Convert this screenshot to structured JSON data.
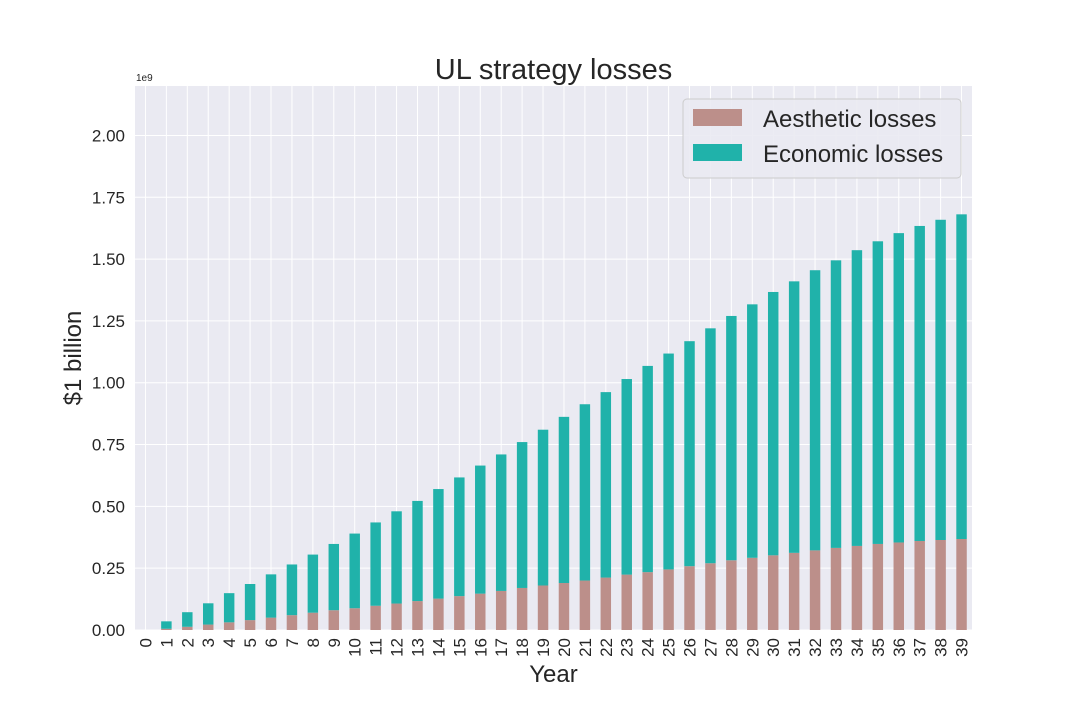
{
  "chart_data": {
    "type": "bar",
    "stacked": true,
    "title": "UL strategy losses",
    "xlabel": "Year",
    "ylabel": "$1 billion",
    "y_offset_label": "1e9",
    "ylim": [
      0,
      2.2
    ],
    "yticks": [
      0.0,
      0.25,
      0.5,
      0.75,
      1.0,
      1.25,
      1.5,
      1.75,
      2.0
    ],
    "ytick_labels": [
      "0.00",
      "0.25",
      "0.50",
      "0.75",
      "1.00",
      "1.25",
      "1.50",
      "1.75",
      "2.00"
    ],
    "grid": true,
    "legend_position": "top-right",
    "categories": [
      "0",
      "1",
      "2",
      "3",
      "4",
      "5",
      "6",
      "7",
      "8",
      "9",
      "10",
      "11",
      "12",
      "13",
      "14",
      "15",
      "16",
      "17",
      "18",
      "19",
      "20",
      "21",
      "22",
      "23",
      "24",
      "25",
      "26",
      "27",
      "28",
      "29",
      "30",
      "31",
      "32",
      "33",
      "34",
      "35",
      "36",
      "37",
      "38",
      "39"
    ],
    "series": [
      {
        "name": "Aesthetic losses",
        "color": "#bc8f8a",
        "values": [
          0.0,
          0.005,
          0.013,
          0.022,
          0.031,
          0.04,
          0.05,
          0.06,
          0.07,
          0.08,
          0.088,
          0.098,
          0.107,
          0.117,
          0.127,
          0.137,
          0.147,
          0.158,
          0.17,
          0.18,
          0.19,
          0.2,
          0.212,
          0.224,
          0.234,
          0.245,
          0.258,
          0.27,
          0.282,
          0.292,
          0.302,
          0.312,
          0.322,
          0.332,
          0.34,
          0.348,
          0.354,
          0.36,
          0.364,
          0.368
        ]
      },
      {
        "name": "Economic losses",
        "color": "#20b2aa",
        "values": [
          0.0,
          0.03,
          0.059,
          0.086,
          0.118,
          0.146,
          0.175,
          0.205,
          0.235,
          0.268,
          0.302,
          0.337,
          0.373,
          0.405,
          0.443,
          0.48,
          0.518,
          0.552,
          0.59,
          0.63,
          0.672,
          0.713,
          0.75,
          0.791,
          0.834,
          0.873,
          0.91,
          0.95,
          0.988,
          1.025,
          1.065,
          1.098,
          1.133,
          1.163,
          1.196,
          1.224,
          1.251,
          1.274,
          1.295,
          1.313
        ]
      }
    ]
  }
}
